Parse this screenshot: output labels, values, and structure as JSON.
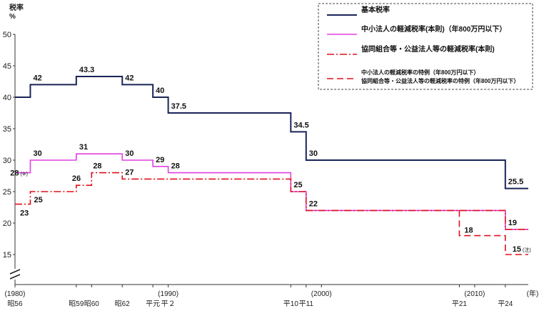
{
  "chart_data": {
    "type": "line",
    "step": true,
    "ylabel": "税率\n%",
    "ylim": [
      10,
      50
    ],
    "y_ticks": [
      15,
      20,
      25,
      30,
      35,
      40,
      45,
      50
    ],
    "y_axis_break": true,
    "x_unit": "(年)",
    "xlim": [
      1980,
      2013.5
    ],
    "x_tick_labels": [
      {
        "x": 1980,
        "era": "昭56",
        "western": "(1980)"
      },
      {
        "x": 1984,
        "era": "昭59",
        "western": ""
      },
      {
        "x": 1985,
        "era": "昭60",
        "western": ""
      },
      {
        "x": 1987,
        "era": "昭62",
        "western": ""
      },
      {
        "x": 1989,
        "era": "平元",
        "western": ""
      },
      {
        "x": 1990,
        "era": "平２",
        "western": "(1990)"
      },
      {
        "x": 1998,
        "era": "平10",
        "western": ""
      },
      {
        "x": 1999,
        "era": "平11",
        "western": ""
      },
      {
        "x": 2000,
        "era": "",
        "western": "(2000)"
      },
      {
        "x": 2009,
        "era": "平21",
        "western": ""
      },
      {
        "x": 2010,
        "era": "",
        "western": "(2010)"
      },
      {
        "x": 2012,
        "era": "平24",
        "western": ""
      }
    ],
    "legend_position": "top-right",
    "series": [
      {
        "name": "基本税率",
        "color": "#1a2459",
        "style": "solid",
        "points": [
          [
            1980,
            40
          ],
          [
            1981,
            42
          ],
          [
            1984,
            43.3
          ],
          [
            1987,
            42
          ],
          [
            1989,
            40
          ],
          [
            1990,
            37.5
          ],
          [
            1998,
            34.5
          ],
          [
            1999,
            30
          ],
          [
            2012,
            25.5
          ],
          [
            2013.5,
            25.5
          ]
        ],
        "labels": [
          {
            "x": 1981,
            "y": 42,
            "text": "42"
          },
          {
            "x": 1984,
            "y": 43.3,
            "text": "43.3"
          },
          {
            "x": 1987,
            "y": 42,
            "text": "42"
          },
          {
            "x": 1989,
            "y": 40,
            "text": "40"
          },
          {
            "x": 1990,
            "y": 37.5,
            "text": "37.5"
          },
          {
            "x": 1998,
            "y": 34.5,
            "text": "34.5"
          },
          {
            "x": 1999,
            "y": 30,
            "text": "30"
          },
          {
            "x": 2012,
            "y": 25.5,
            "text": "25.5"
          }
        ]
      },
      {
        "name": "中小法人の軽減税率(本則)（年800万円以下）",
        "color": "#e040e0",
        "style": "solid",
        "points": [
          [
            1980,
            28
          ],
          [
            1981,
            30
          ],
          [
            1984,
            31
          ],
          [
            1987,
            30
          ],
          [
            1989,
            29
          ],
          [
            1990,
            28
          ],
          [
            1998,
            25
          ],
          [
            1999,
            22
          ],
          [
            2012,
            19
          ],
          [
            2013.5,
            19
          ]
        ],
        "labels": [
          {
            "x": 1980,
            "y": 28,
            "text": "28",
            "note": "(※)"
          },
          {
            "x": 1981,
            "y": 30,
            "text": "30"
          },
          {
            "x": 1984,
            "y": 31,
            "text": "31"
          },
          {
            "x": 1987,
            "y": 30,
            "text": "30"
          },
          {
            "x": 1989,
            "y": 29,
            "text": "29"
          },
          {
            "x": 1990,
            "y": 28,
            "text": "28"
          },
          {
            "x": 1998,
            "y": 25,
            "text": "25"
          },
          {
            "x": 1999,
            "y": 22,
            "text": "22"
          },
          {
            "x": 2012,
            "y": 19,
            "text": "19"
          }
        ]
      },
      {
        "name": "協同組合等・公益法人等の軽減税率(本則)",
        "color": "#e0101a",
        "style": "dashdot",
        "points": [
          [
            1980,
            23
          ],
          [
            1981,
            25
          ],
          [
            1984,
            26
          ],
          [
            1985,
            28
          ],
          [
            1987,
            27
          ],
          [
            1998,
            25
          ],
          [
            1999,
            22
          ],
          [
            2012,
            19
          ],
          [
            2013.5,
            19
          ]
        ],
        "labels": [
          {
            "x": 1980,
            "y": 23,
            "text": "23"
          },
          {
            "x": 1981,
            "y": 25,
            "text": "25"
          },
          {
            "x": 1984,
            "y": 26,
            "text": "26"
          },
          {
            "x": 1985,
            "y": 28,
            "text": "28"
          },
          {
            "x": 1987,
            "y": 27,
            "text": "27"
          }
        ]
      },
      {
        "name": "中小法人の軽減税率の特例（年800万円以下）",
        "name2": "協同組合等・公益法人等の軽減税率の特例（年800万円以下）",
        "color": "#e0101a",
        "style": "dashed",
        "points": [
          [
            2009,
            22
          ],
          [
            2009,
            18
          ],
          [
            2012,
            15
          ],
          [
            2013.5,
            15
          ]
        ],
        "labels": [
          {
            "x": 2009,
            "y": 18,
            "text": "18"
          },
          {
            "x": 2012,
            "y": 15,
            "text": "15",
            "note": "(注)"
          }
        ]
      }
    ]
  }
}
